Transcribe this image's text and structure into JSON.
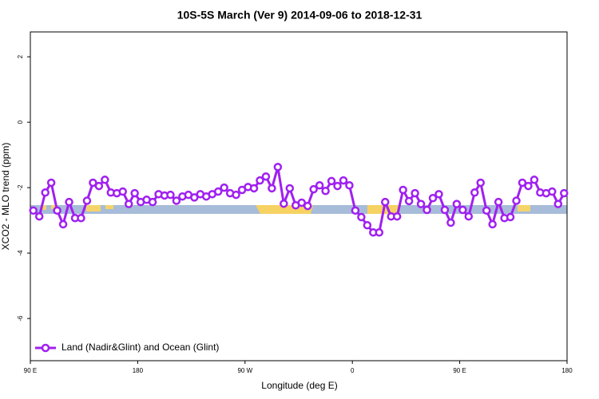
{
  "chart_data": {
    "type": "line",
    "title": "10S-5S March (Ver 9)   2014-09-06 to 2018-12-31",
    "x_label": "Longitude (deg E)",
    "y_label": "XCO2 - MLO trend (ppm)",
    "xlim": [
      90,
      540
    ],
    "xticks": [
      {
        "value": 90,
        "label": "90 E"
      },
      180,
      {
        "value": 270,
        "label": "90 W"
      },
      {
        "value": 360,
        "label": "0"
      },
      {
        "value": 450,
        "label": "90 E"
      },
      {
        "value": 540,
        "label": "180"
      }
    ],
    "ylim": [
      -7.29,
      2.76
    ],
    "yticks": [
      2,
      0,
      -2,
      -4,
      -6
    ],
    "legend": "bottom-left",
    "series": [
      {
        "name": "Land (Nadir&Glint) and Ocean (Glint)",
        "color": "#a020f0",
        "x": [
          92.5,
          97.5,
          102.5,
          107.5,
          112.5,
          117.5,
          122.5,
          127.5,
          132.5,
          137.5,
          142.5,
          147.5,
          152.5,
          157.5,
          162.5,
          167.5,
          172.5,
          177.5,
          182.5,
          187.5,
          192.5,
          197.5,
          202.5,
          207.5,
          212.5,
          217.5,
          222.5,
          227.5,
          232.5,
          237.5,
          242.5,
          247.5,
          252.5,
          257.5,
          262.5,
          267.5,
          272.5,
          277.5,
          282.5,
          287.5,
          292.5,
          297.5,
          302.5,
          307.5,
          312.5,
          317.5,
          322.5,
          327.5,
          332.5,
          337.5,
          342.5,
          347.5,
          352.5,
          357.5,
          362.5,
          367.5,
          372.5,
          377.5,
          382.5,
          387.5,
          392.5,
          397.5,
          402.5,
          407.5,
          412.5,
          417.5,
          422.5,
          427.5,
          432.5,
          437.5,
          442.5,
          447.5,
          452.5,
          457.5,
          462.5,
          467.5,
          472.5,
          477.5,
          482.5,
          487.5,
          492.5,
          497.5,
          502.5,
          507.5,
          512.5,
          517.5,
          522.5,
          527.5,
          532.5,
          537.5
        ],
        "values": [
          -2.7,
          -2.88,
          -2.15,
          -1.85,
          -2.7,
          -3.12,
          -2.44,
          -2.93,
          -2.93,
          -2.4,
          -1.85,
          -1.95,
          -1.76,
          -2.15,
          -2.17,
          -2.12,
          -2.5,
          -2.17,
          -2.44,
          -2.37,
          -2.44,
          -2.2,
          -2.24,
          -2.22,
          -2.4,
          -2.27,
          -2.22,
          -2.3,
          -2.2,
          -2.27,
          -2.2,
          -2.12,
          -2.0,
          -2.17,
          -2.22,
          -2.07,
          -1.98,
          -2.02,
          -1.78,
          -1.66,
          -2.02,
          -1.37,
          -2.49,
          -2.02,
          -2.54,
          -2.46,
          -2.56,
          -2.05,
          -1.93,
          -2.1,
          -1.8,
          -1.95,
          -1.78,
          -1.93,
          -2.7,
          -2.9,
          -3.15,
          -3.37,
          -3.37,
          -2.44,
          -2.88,
          -2.88,
          -2.07,
          -2.41,
          -2.17,
          -2.5,
          -2.68,
          -2.32,
          -2.2,
          -2.68,
          -3.07,
          -2.5,
          -2.68,
          -2.88,
          -2.15,
          -1.85,
          -2.7,
          -3.12,
          -2.44,
          -2.93,
          -2.9,
          -2.4,
          -1.85,
          -1.95,
          -1.76,
          -2.15,
          -2.17,
          -2.12,
          -2.5,
          -2.17
        ]
      }
    ]
  }
}
